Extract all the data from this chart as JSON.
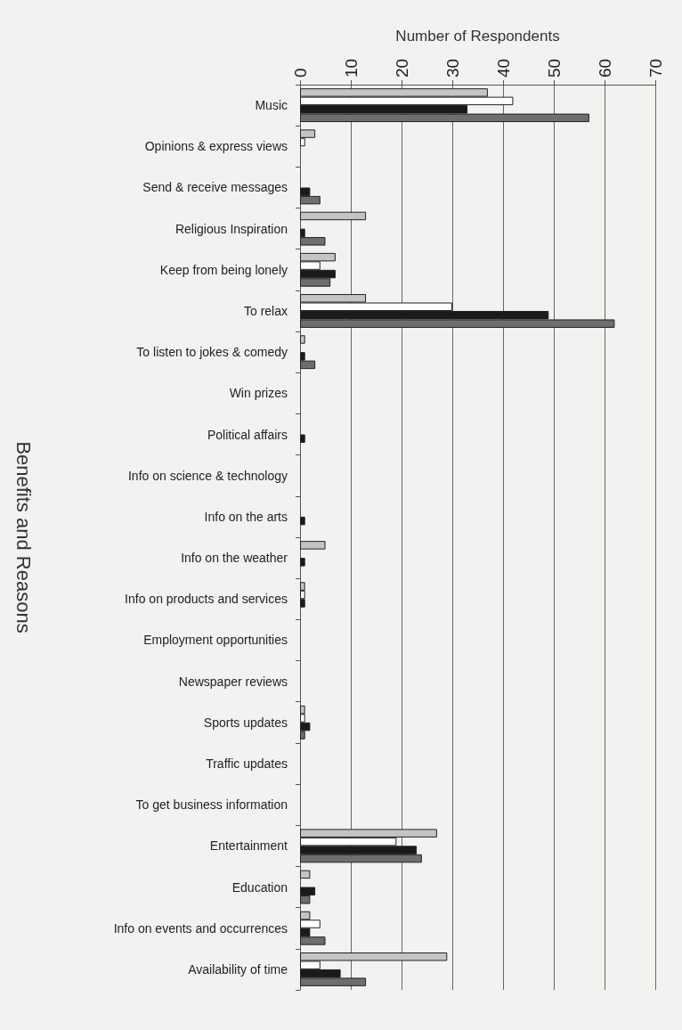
{
  "chart_data": {
    "type": "bar",
    "orientation": "horizontal",
    "xlabel": "Number of Respondents",
    "ylabel": "Benefits and Reasons",
    "categories": [
      "Music",
      "Opinions & express views",
      "Send & receive messages",
      "Religious Inspiration",
      "Keep from being lonely",
      "To relax",
      "To listen to jokes & comedy",
      "Win prizes",
      "Political affairs",
      "Info on science & technology",
      "Info on the arts",
      "Info on the weather",
      "Info on products and services",
      "Employment opportunities",
      "Newspaper reviews",
      "Sports updates",
      "Traffic updates",
      "To get business information",
      "Entertainment",
      "Education",
      "Info on events and occurrences",
      "Availability of time"
    ],
    "series": [
      {
        "color": "#c4c4c4",
        "values": [
          37,
          3,
          0,
          13,
          7,
          13,
          1,
          0,
          0,
          0,
          0,
          5,
          1,
          0,
          0,
          1,
          0,
          0,
          27,
          2,
          2,
          29
        ]
      },
      {
        "color": "#ffffff",
        "values": [
          42,
          1,
          0,
          0,
          4,
          30,
          0,
          0,
          0,
          0,
          0,
          0,
          1,
          0,
          0,
          1,
          0,
          0,
          19,
          0,
          4,
          4
        ]
      },
      {
        "color": "#1a1a1a",
        "values": [
          33,
          0,
          2,
          1,
          7,
          49,
          1,
          0,
          1,
          0,
          1,
          1,
          1,
          0,
          0,
          2,
          0,
          0,
          23,
          3,
          2,
          8
        ]
      },
      {
        "color": "#6e6e6e",
        "values": [
          57,
          0,
          4,
          5,
          6,
          62,
          3,
          0,
          0,
          0,
          0,
          0,
          0,
          0,
          0,
          1,
          0,
          0,
          24,
          2,
          5,
          13
        ]
      }
    ],
    "xlim": [
      0,
      70
    ],
    "xticks": [
      0,
      10,
      20,
      30,
      40,
      50,
      60,
      70
    ],
    "grid": "x"
  }
}
